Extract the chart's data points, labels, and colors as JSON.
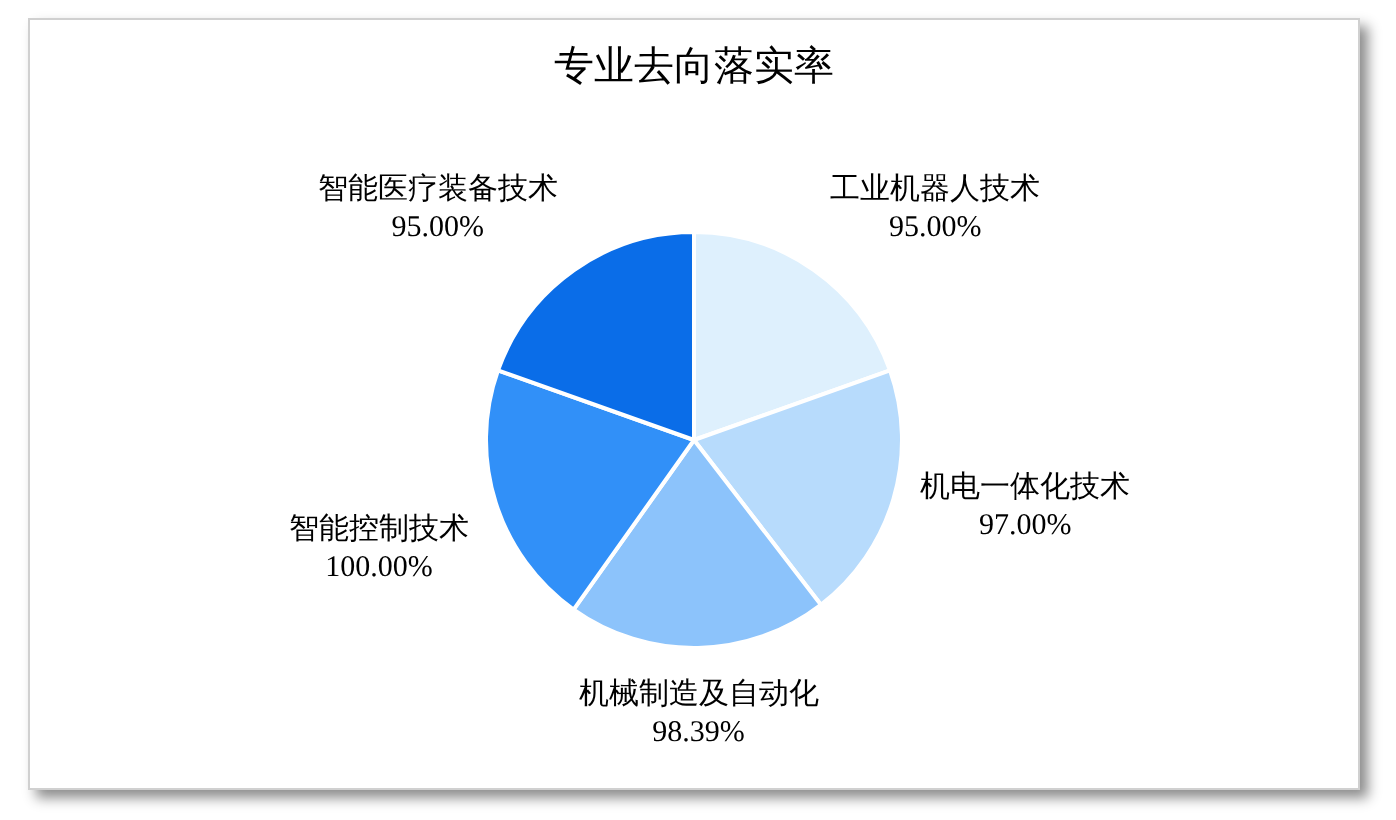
{
  "chart_data": {
    "type": "pie",
    "title": "专业去向落实率",
    "categories": [
      "工业机器人技术",
      "机电一体化技术",
      "机械制造及自动化",
      "智能控制技术",
      "智能医疗装备技术"
    ],
    "values": [
      95,
      97,
      98.39,
      100,
      95
    ],
    "value_labels": [
      "95.00%",
      "97.00%",
      "98.39%",
      "100.00%",
      "95.00%"
    ],
    "colors": [
      "#def0fd",
      "#b7dbfc",
      "#8cc3fb",
      "#3190f8",
      "#0a6de8"
    ],
    "legend": false
  }
}
